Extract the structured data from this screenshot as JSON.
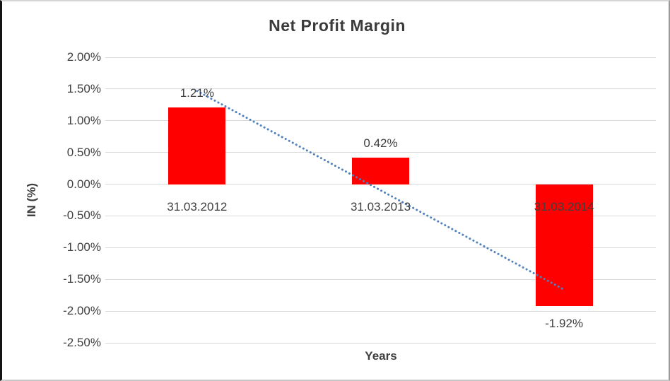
{
  "chart_data": {
    "type": "bar",
    "title": "Net Profit Margin",
    "xlabel": "Years",
    "ylabel": "IN (%)",
    "categories": [
      "31.03.2012",
      "31.03.2013",
      "31.03.2014"
    ],
    "values": [
      1.21,
      0.42,
      -1.92
    ],
    "data_labels": [
      "1.21%",
      "0.42%",
      "-1.92%"
    ],
    "y_ticks": [
      "2.00%",
      "1.50%",
      "1.00%",
      "0.50%",
      "0.00%",
      "-0.50%",
      "-1.00%",
      "-1.50%",
      "-2.00%",
      "-2.50%"
    ],
    "y_tick_values": [
      2.0,
      1.5,
      1.0,
      0.5,
      0.0,
      -0.5,
      -1.0,
      -1.5,
      -2.0,
      -2.5
    ],
    "ylim": [
      -2.5,
      2.0
    ],
    "grid": true,
    "legend": "none",
    "bar_color": "#ff0000",
    "gridline_color": "#d9d9d9",
    "text_color": "#3f3f3f",
    "trendline": {
      "type": "linear",
      "style": "dotted",
      "color": "#4f81bd"
    }
  }
}
